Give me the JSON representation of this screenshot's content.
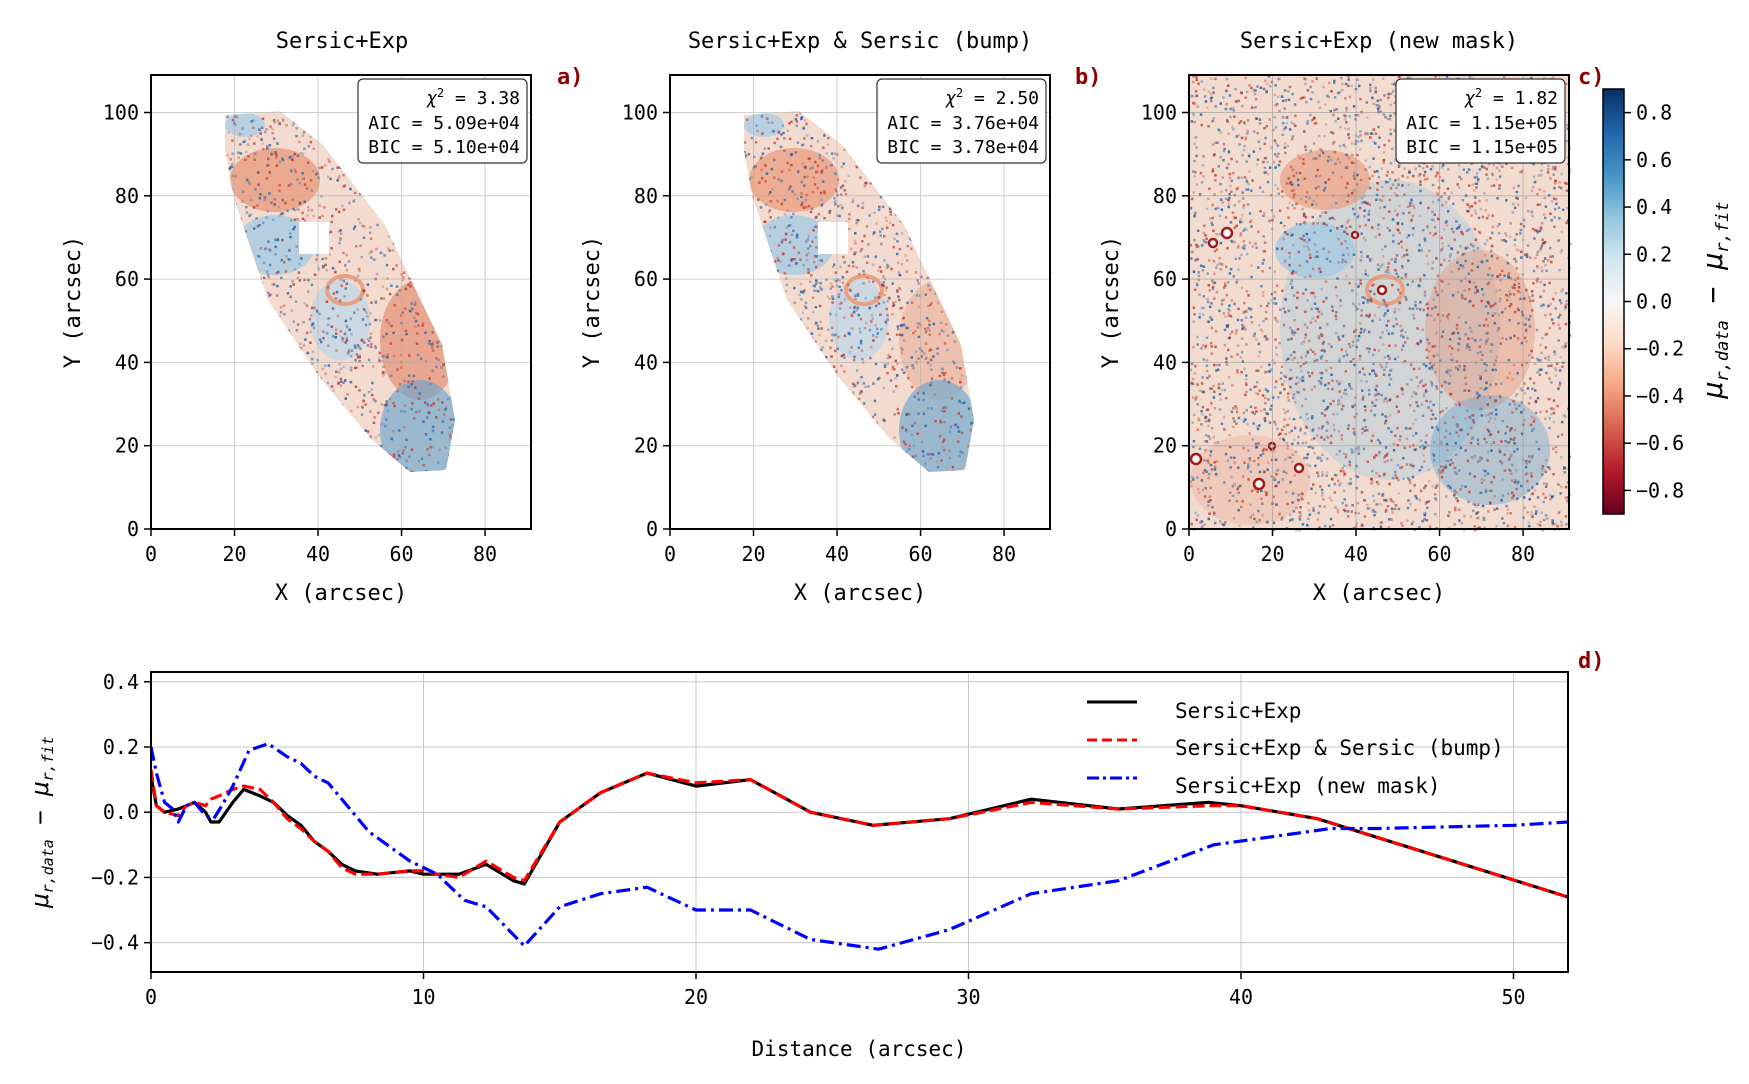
{
  "colors": {
    "positive": "#1f5fa8",
    "negative": "#c0392b",
    "panel_label": "#8b0000",
    "series": [
      "#000000",
      "#ff0000",
      "#0000ff"
    ]
  },
  "colorbar": {
    "label": "μ_{r,data} − μ_{r,fit}",
    "label_main": "μ",
    "label_sub1": "r,data",
    "label_minus": " − ",
    "label_main2": "μ",
    "label_sub2": "r,fit",
    "range": [
      -0.9,
      0.9
    ],
    "colormap": "RdBu",
    "ticks": [
      "0.8",
      "0.6",
      "0.4",
      "0.2",
      "0.0",
      "−0.2",
      "−0.4",
      "−0.6",
      "−0.8"
    ]
  },
  "chart_data": [
    {
      "type": "heatmap",
      "panel_label": "a)",
      "title": "Sersic+Exp",
      "xlabel": "X (arcsec)",
      "ylabel": "Y (arcsec)",
      "xlim": [
        0,
        91
      ],
      "ylim": [
        0,
        109
      ],
      "xticks": [
        "0",
        "20",
        "40",
        "60",
        "80"
      ],
      "yticks": [
        "0",
        "20",
        "40",
        "60",
        "80",
        "100"
      ],
      "grid": true,
      "mask": "elliptical galaxy region with square mask near (40, 70)",
      "stats": [
        "χ² = 3.38",
        "AIC = 5.09e+04",
        "BIC = 5.10e+04"
      ],
      "stats_parts": [
        {
          "pre": "χ",
          "sup": "2",
          "post": " = 3.38"
        },
        {
          "pre": "AIC = 5.09e+04"
        },
        {
          "pre": "BIC = 5.10e+04"
        }
      ]
    },
    {
      "type": "heatmap",
      "panel_label": "b)",
      "title": "Sersic+Exp & Sersic (bump)",
      "xlabel": "X (arcsec)",
      "ylabel": "Y (arcsec)",
      "xlim": [
        0,
        91
      ],
      "ylim": [
        0,
        109
      ],
      "xticks": [
        "0",
        "20",
        "40",
        "60",
        "80"
      ],
      "yticks": [
        "0",
        "20",
        "40",
        "60",
        "80",
        "100"
      ],
      "grid": true,
      "mask": "elliptical galaxy region with square mask near (40, 70)",
      "stats": [
        "χ² = 2.50",
        "AIC = 3.76e+04",
        "BIC = 3.78e+04"
      ],
      "stats_parts": [
        {
          "pre": "χ",
          "sup": "2",
          "post": " = 2.50"
        },
        {
          "pre": "AIC = 3.76e+04"
        },
        {
          "pre": "BIC = 3.78e+04"
        }
      ]
    },
    {
      "type": "heatmap",
      "panel_label": "c)",
      "title": "Sersic+Exp (new mask)",
      "xlabel": "X (arcsec)",
      "ylabel": "Y (arcsec)",
      "xlim": [
        0,
        91
      ],
      "ylim": [
        0,
        109
      ],
      "xticks": [
        "0",
        "20",
        "40",
        "60",
        "80"
      ],
      "yticks": [
        "0",
        "20",
        "40",
        "60",
        "80",
        "100"
      ],
      "grid": true,
      "mask": "full field with small masked point sources",
      "stats": [
        "χ² = 1.82",
        "AIC = 1.15e+05",
        "BIC = 1.15e+05"
      ],
      "stats_parts": [
        {
          "pre": "χ",
          "sup": "2",
          "post": " = 1.82"
        },
        {
          "pre": "AIC = 1.15e+05"
        },
        {
          "pre": "BIC = 1.15e+05"
        }
      ]
    },
    {
      "type": "line",
      "panel_label": "d)",
      "xlabel": "Distance (arcsec)",
      "ylabel": "μ_{r,data} − μ_{r,fit}",
      "xlim": [
        0,
        52
      ],
      "ylim": [
        -0.49,
        0.43
      ],
      "xticks": [
        0,
        10,
        20,
        30,
        40,
        50
      ],
      "yticks": [
        0.4,
        0.2,
        0.0,
        -0.2,
        -0.4
      ],
      "ytick_labels": [
        "0.4",
        "0.2",
        "0.0",
        "−0.2",
        "−0.4"
      ],
      "grid": true,
      "legend_position": "top-right",
      "series": [
        {
          "name": "Sersic+Exp",
          "style": "solid",
          "x": [
            0,
            0.2,
            0.5,
            1.0,
            1.3,
            1.6,
            2.0,
            2.2,
            2.5,
            3.0,
            3.4,
            4.0,
            4.5,
            5.0,
            5.5,
            6.0,
            6.5,
            7.0,
            7.5,
            8.3,
            9.5,
            10.0,
            10.5,
            11.3,
            12.3,
            13.3,
            13.7,
            15.0,
            16.5,
            18.2,
            20.0,
            22.0,
            24.2,
            26.5,
            29.3,
            32.3,
            35.5,
            38.8,
            40.0,
            42.8,
            52.0
          ],
          "y": [
            0.11,
            0.02,
            0.0,
            0.01,
            0.02,
            0.03,
            0.0,
            -0.03,
            -0.03,
            0.03,
            0.07,
            0.05,
            0.03,
            -0.01,
            -0.04,
            -0.09,
            -0.12,
            -0.16,
            -0.18,
            -0.19,
            -0.18,
            -0.19,
            -0.19,
            -0.19,
            -0.16,
            -0.21,
            -0.22,
            -0.03,
            0.06,
            0.12,
            0.08,
            0.1,
            0.0,
            -0.04,
            -0.02,
            0.04,
            0.01,
            0.03,
            0.02,
            -0.02,
            -0.26
          ]
        },
        {
          "name": "Sersic+Exp & Sersic (bump)",
          "style": "dashed",
          "x": [
            0,
            0.2,
            0.5,
            1.0,
            1.3,
            1.6,
            2.0,
            2.2,
            2.5,
            3.0,
            3.4,
            4.0,
            4.5,
            5.0,
            5.5,
            6.0,
            6.5,
            7.0,
            7.5,
            8.3,
            9.5,
            10.0,
            10.5,
            11.3,
            12.3,
            13.3,
            13.7,
            15.0,
            16.5,
            18.2,
            20.0,
            22.0,
            24.2,
            26.5,
            29.3,
            32.3,
            35.5,
            38.8,
            40.0,
            42.8,
            52.0
          ],
          "y": [
            0.13,
            0.02,
            0.0,
            -0.01,
            0.02,
            0.03,
            0.02,
            0.04,
            0.05,
            0.07,
            0.08,
            0.07,
            0.03,
            -0.02,
            -0.05,
            -0.09,
            -0.12,
            -0.17,
            -0.19,
            -0.19,
            -0.18,
            -0.18,
            -0.19,
            -0.2,
            -0.15,
            -0.2,
            -0.21,
            -0.03,
            0.06,
            0.12,
            0.09,
            0.1,
            0.0,
            -0.04,
            -0.02,
            0.03,
            0.01,
            0.02,
            0.02,
            -0.02,
            -0.26
          ]
        },
        {
          "name": "Sersic+Exp (new mask)",
          "style": "dashdot",
          "x": [
            0,
            0.2,
            0.5,
            0.8,
            1.0,
            1.3,
            1.6,
            2.0,
            2.3,
            2.6,
            3.0,
            3.6,
            4.3,
            5.0,
            5.5,
            6.0,
            6.5,
            7.0,
            8.0,
            9.5,
            10.5,
            11.5,
            12.3,
            13.7,
            15.0,
            16.5,
            18.2,
            20.0,
            22.0,
            24.2,
            26.7,
            29.3,
            32.3,
            35.5,
            39.0,
            43.3,
            45.0,
            50.0,
            52.0
          ],
          "y": [
            0.2,
            0.12,
            0.03,
            0.01,
            -0.03,
            0.02,
            0.03,
            -0.01,
            -0.02,
            0.02,
            0.08,
            0.19,
            0.21,
            0.17,
            0.15,
            0.11,
            0.09,
            0.04,
            -0.06,
            -0.15,
            -0.19,
            -0.27,
            -0.29,
            -0.41,
            -0.29,
            -0.25,
            -0.23,
            -0.3,
            -0.3,
            -0.39,
            -0.42,
            -0.36,
            -0.25,
            -0.21,
            -0.1,
            -0.05,
            -0.05,
            -0.04,
            -0.03
          ]
        }
      ]
    }
  ]
}
